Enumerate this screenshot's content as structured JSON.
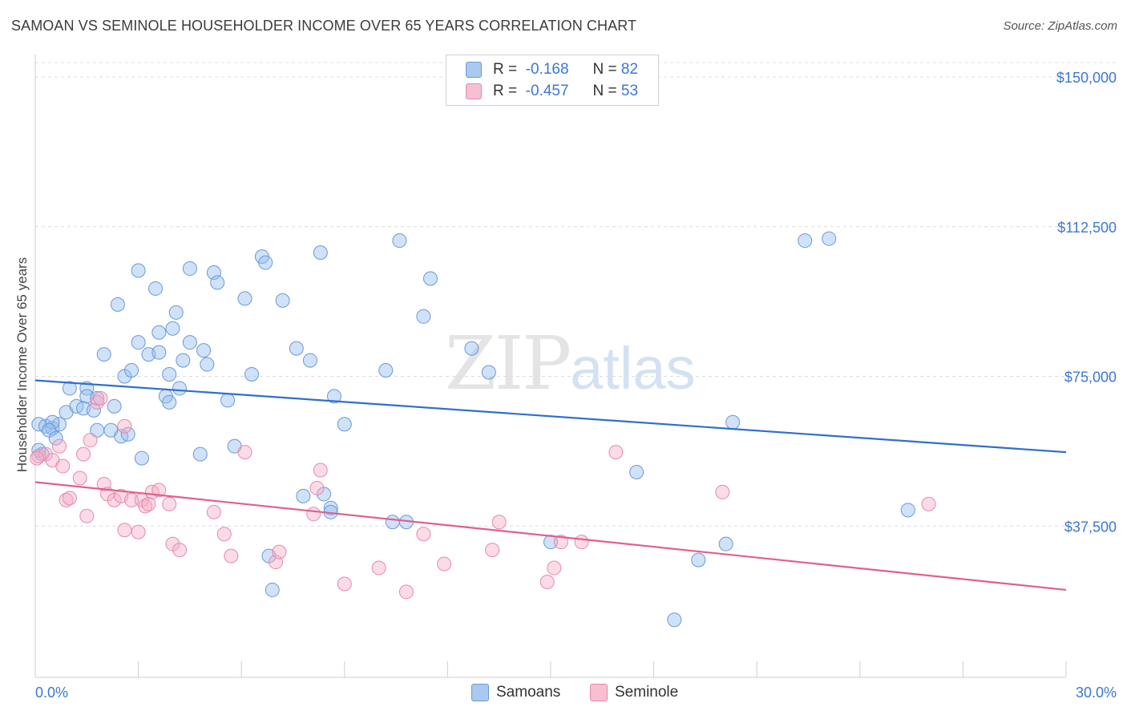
{
  "title": "SAMOAN VS SEMINOLE HOUSEHOLDER INCOME OVER 65 YEARS CORRELATION CHART",
  "source": "Source: ZipAtlas.com",
  "watermark": {
    "zip": "ZIP",
    "atlas": "atlas"
  },
  "legend": {
    "rows": [
      {
        "r_label": "R =",
        "r_value": "-0.168",
        "n_label": "N =",
        "n_value": "82",
        "color": "#a9c9f0",
        "border": "#6a9ad8"
      },
      {
        "r_label": "R =",
        "r_value": "-0.457",
        "n_label": "N =",
        "n_value": "53",
        "color": "#f7bfd2",
        "border": "#e88aa8"
      }
    ]
  },
  "bottom_legend": {
    "samoans": "Samoans",
    "seminole": "Seminole"
  },
  "chart_data": {
    "type": "scatter",
    "title": "SAMOAN VS SEMINOLE HOUSEHOLDER INCOME OVER 65 YEARS CORRELATION CHART",
    "xlabel": "",
    "ylabel": "Householder Income Over 65 years",
    "xlim": [
      0,
      30
    ],
    "ylim": [
      0,
      150000
    ],
    "x_tick_labels": [
      "0.0%",
      "30.0%"
    ],
    "y_ticks": [
      37500,
      75000,
      112500,
      150000
    ],
    "y_tick_labels": [
      "$37,500",
      "$75,000",
      "$112,500",
      "$150,000"
    ],
    "grid": "horizontal dashed",
    "series": [
      {
        "name": "Samoans",
        "color": "#6a9ad8",
        "fill": "rgba(150,190,240,0.45)",
        "trend": {
          "x": [
            0,
            30
          ],
          "y": [
            74000,
            56000
          ],
          "color": "#2f6fcf"
        },
        "points": [
          [
            0.1,
            63000
          ],
          [
            0.3,
            62500
          ],
          [
            0.5,
            62000
          ],
          [
            0.7,
            63000
          ],
          [
            0.5,
            63500
          ],
          [
            0.4,
            61500
          ],
          [
            0.6,
            59500
          ],
          [
            0.9,
            66000
          ],
          [
            1.0,
            72000
          ],
          [
            1.2,
            67500
          ],
          [
            1.4,
            67000
          ],
          [
            1.5,
            72000
          ],
          [
            1.5,
            70000
          ],
          [
            1.7,
            66500
          ],
          [
            1.8,
            69500
          ],
          [
            1.8,
            61500
          ],
          [
            2.0,
            80500
          ],
          [
            2.2,
            61500
          ],
          [
            2.3,
            67500
          ],
          [
            2.4,
            93000
          ],
          [
            2.5,
            60000
          ],
          [
            2.6,
            75000
          ],
          [
            2.7,
            60500
          ],
          [
            2.8,
            76500
          ],
          [
            3.0,
            83500
          ],
          [
            3.0,
            101500
          ],
          [
            3.1,
            54500
          ],
          [
            3.3,
            80500
          ],
          [
            3.5,
            97000
          ],
          [
            3.6,
            86000
          ],
          [
            3.6,
            81000
          ],
          [
            3.8,
            70000
          ],
          [
            3.9,
            68500
          ],
          [
            3.9,
            75500
          ],
          [
            4.0,
            87000
          ],
          [
            4.1,
            91000
          ],
          [
            4.2,
            72000
          ],
          [
            4.3,
            79000
          ],
          [
            4.5,
            83500
          ],
          [
            4.5,
            102000
          ],
          [
            4.8,
            55500
          ],
          [
            4.9,
            81500
          ],
          [
            5.0,
            78000
          ],
          [
            5.2,
            101000
          ],
          [
            5.3,
            98500
          ],
          [
            5.6,
            69000
          ],
          [
            5.8,
            57500
          ],
          [
            6.1,
            94500
          ],
          [
            6.3,
            75500
          ],
          [
            6.6,
            105000
          ],
          [
            6.7,
            103500
          ],
          [
            6.8,
            30000
          ],
          [
            6.9,
            21500
          ],
          [
            7.2,
            94000
          ],
          [
            7.6,
            82000
          ],
          [
            7.8,
            45000
          ],
          [
            8.0,
            79000
          ],
          [
            8.3,
            106000
          ],
          [
            8.4,
            45500
          ],
          [
            8.6,
            42000
          ],
          [
            8.6,
            41000
          ],
          [
            8.7,
            70000
          ],
          [
            9.0,
            63000
          ],
          [
            10.2,
            76500
          ],
          [
            10.4,
            38500
          ],
          [
            10.6,
            109000
          ],
          [
            10.8,
            38500
          ],
          [
            11.3,
            90000
          ],
          [
            11.5,
            99500
          ],
          [
            12.7,
            82000
          ],
          [
            13.2,
            76000
          ],
          [
            15.0,
            33500
          ],
          [
            17.5,
            51000
          ],
          [
            18.6,
            14000
          ],
          [
            19.3,
            29000
          ],
          [
            20.1,
            33000
          ],
          [
            20.3,
            63500
          ],
          [
            22.4,
            109000
          ],
          [
            23.1,
            109500
          ],
          [
            25.4,
            41500
          ],
          [
            0.2,
            55500
          ],
          [
            0.1,
            56500
          ]
        ]
      },
      {
        "name": "Seminole",
        "color": "#e88aa8",
        "fill": "rgba(245,175,200,0.45)",
        "trend": {
          "x": [
            0,
            30
          ],
          "y": [
            48500,
            21500
          ],
          "color": "#e0608f"
        },
        "points": [
          [
            0.1,
            55000
          ],
          [
            0.3,
            55500
          ],
          [
            0.5,
            54000
          ],
          [
            0.7,
            57500
          ],
          [
            0.8,
            52500
          ],
          [
            0.9,
            44000
          ],
          [
            1.0,
            44500
          ],
          [
            1.3,
            49500
          ],
          [
            1.4,
            55500
          ],
          [
            1.5,
            40000
          ],
          [
            1.6,
            59000
          ],
          [
            1.8,
            68500
          ],
          [
            1.9,
            69500
          ],
          [
            2.0,
            48000
          ],
          [
            2.1,
            45500
          ],
          [
            2.3,
            44000
          ],
          [
            2.5,
            45000
          ],
          [
            2.6,
            36500
          ],
          [
            2.6,
            62500
          ],
          [
            2.8,
            44000
          ],
          [
            3.0,
            36000
          ],
          [
            3.1,
            44000
          ],
          [
            3.2,
            42500
          ],
          [
            3.3,
            43000
          ],
          [
            3.4,
            46000
          ],
          [
            3.6,
            46500
          ],
          [
            3.9,
            43000
          ],
          [
            4.0,
            33000
          ],
          [
            4.2,
            31500
          ],
          [
            5.2,
            41000
          ],
          [
            5.5,
            35500
          ],
          [
            5.7,
            30000
          ],
          [
            6.1,
            56000
          ],
          [
            7.0,
            28500
          ],
          [
            7.1,
            31000
          ],
          [
            8.1,
            40500
          ],
          [
            8.2,
            47000
          ],
          [
            8.3,
            51500
          ],
          [
            9.0,
            23000
          ],
          [
            10.0,
            27000
          ],
          [
            10.8,
            21000
          ],
          [
            11.3,
            35500
          ],
          [
            11.9,
            28000
          ],
          [
            13.3,
            31500
          ],
          [
            13.5,
            38500
          ],
          [
            14.9,
            23500
          ],
          [
            15.1,
            27000
          ],
          [
            15.3,
            33500
          ],
          [
            15.9,
            33500
          ],
          [
            16.9,
            56000
          ],
          [
            20.0,
            46000
          ],
          [
            26.0,
            43000
          ],
          [
            0.05,
            54500
          ]
        ]
      }
    ]
  }
}
